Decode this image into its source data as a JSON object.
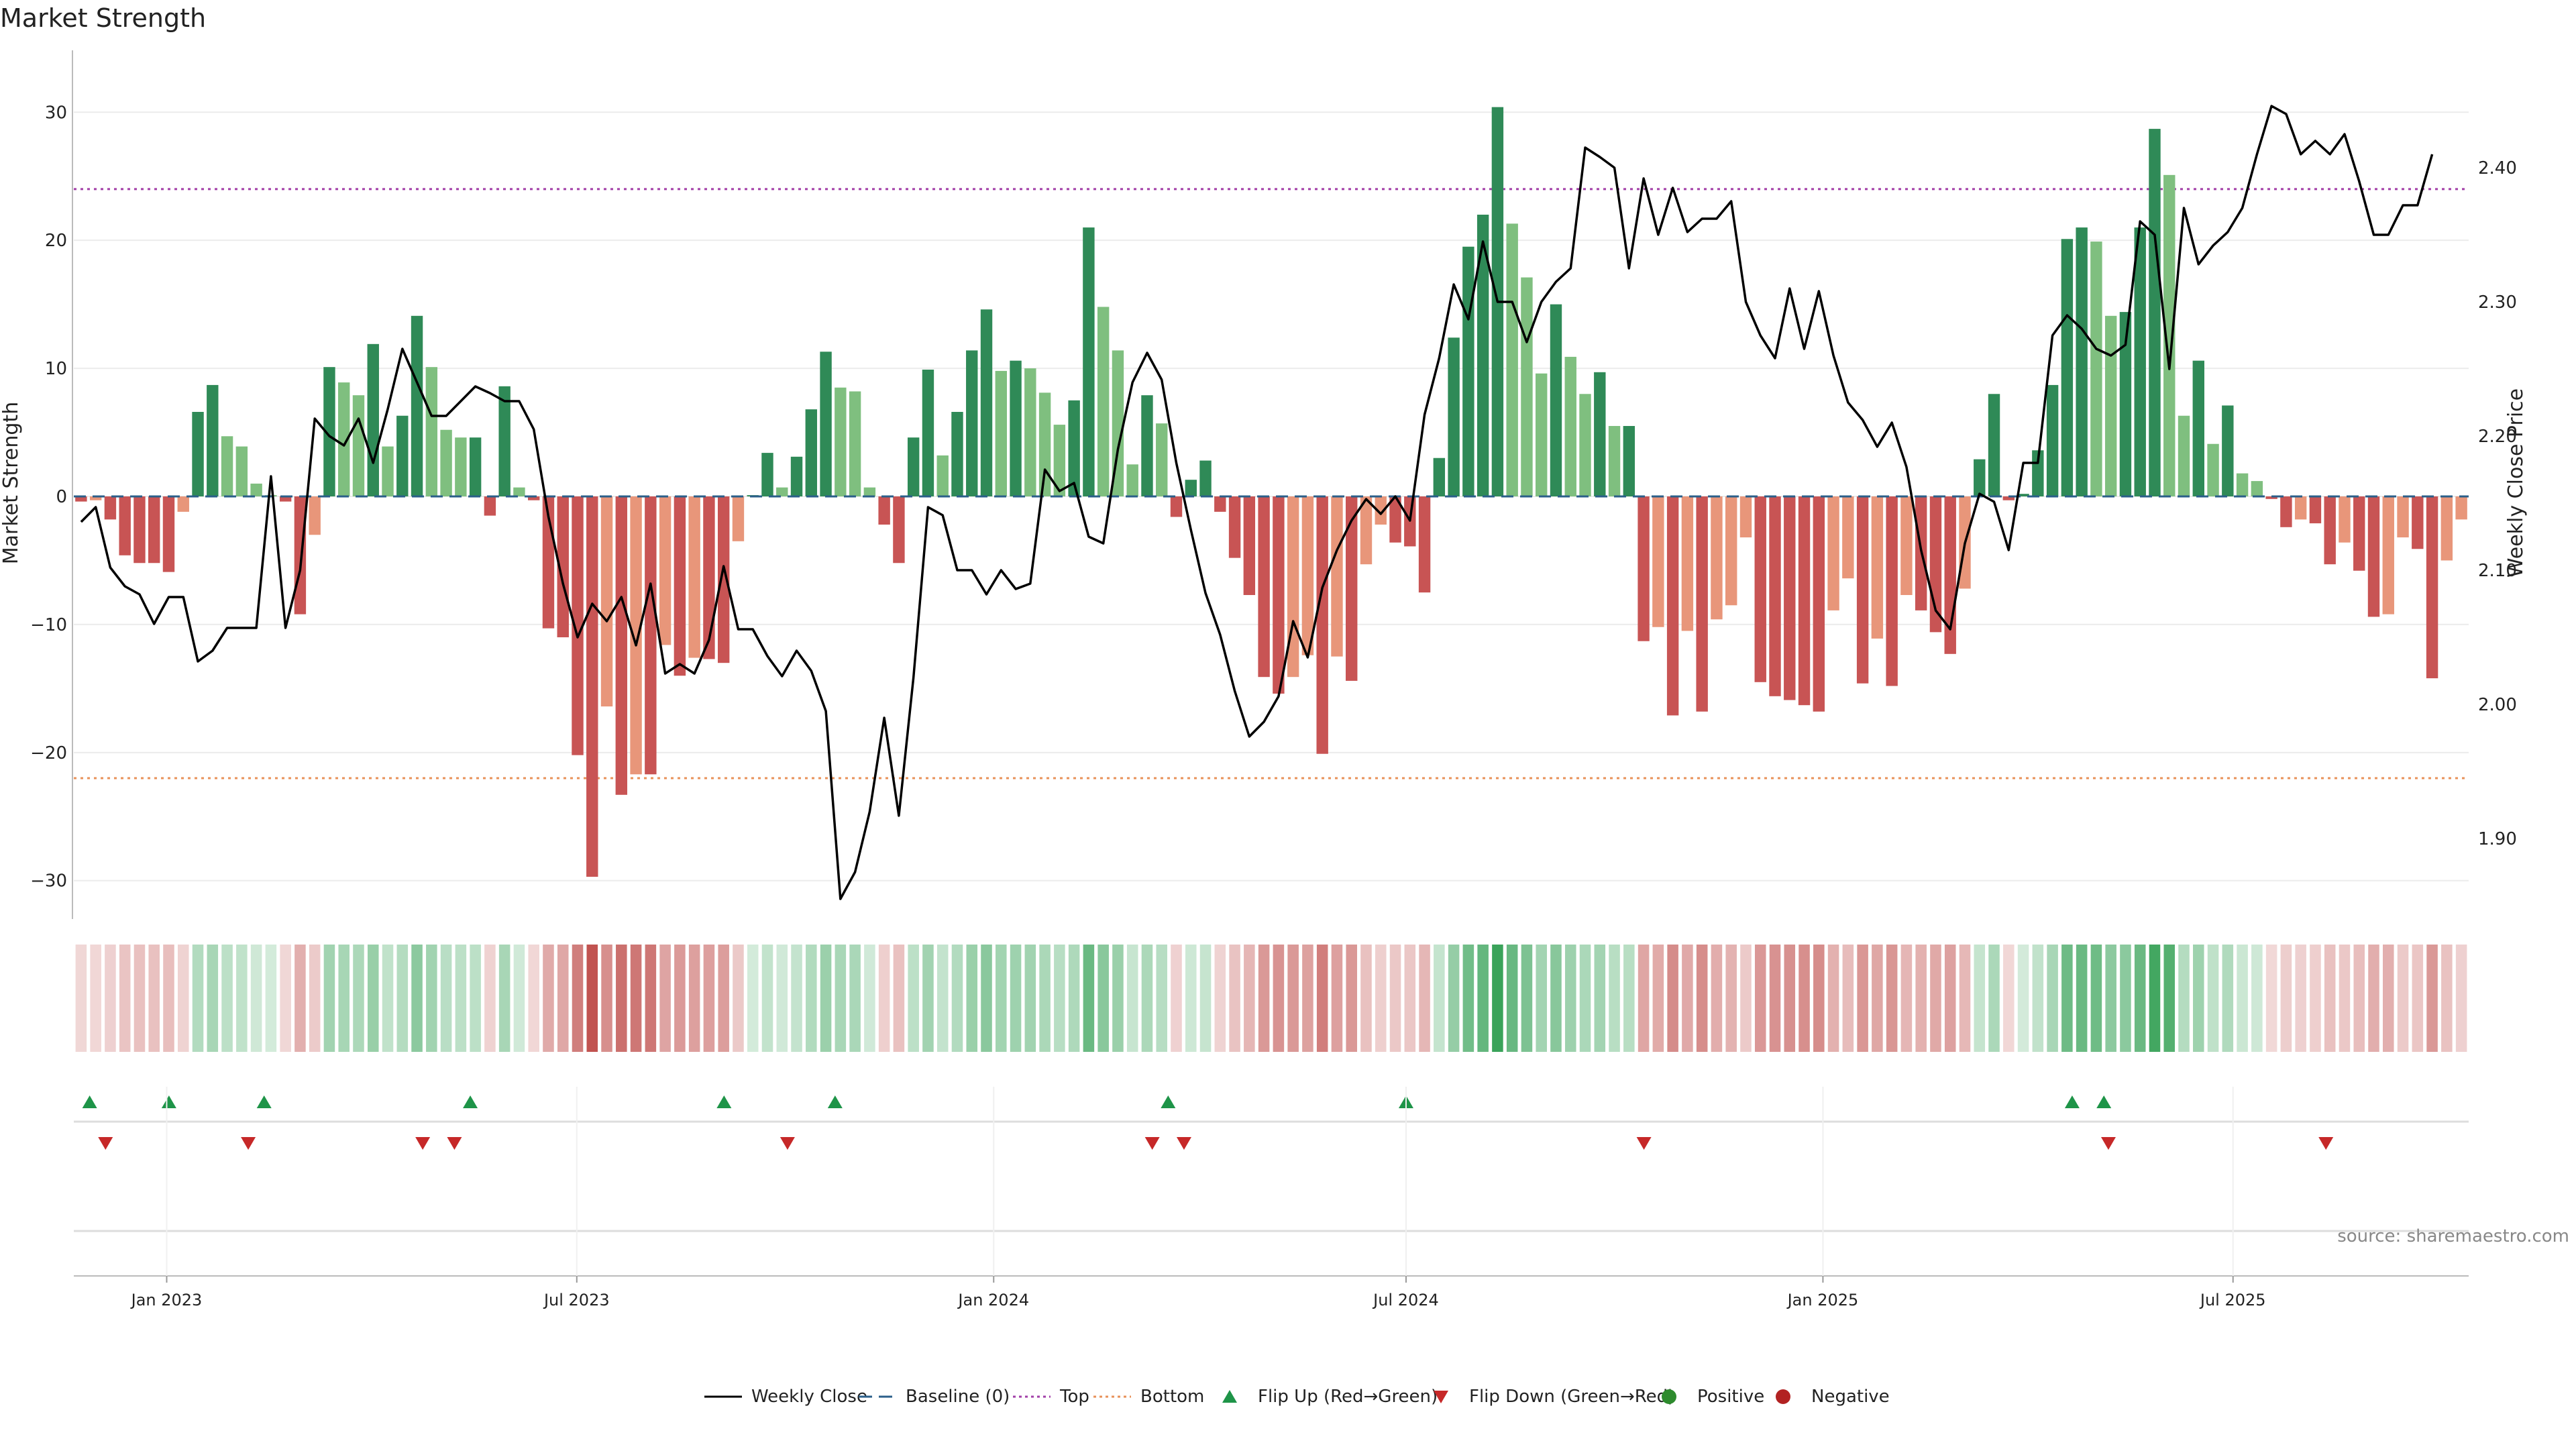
{
  "chart_data": {
    "type": "bar",
    "title": "Market Strength",
    "ylabel_left": "Market Strength",
    "ylabel_right": "Weekly Close Price",
    "source": "source: sharemaestro.com",
    "ylim_left": [
      -33,
      33
    ],
    "ylim_right": [
      1.84,
      2.47
    ],
    "yticks_left": [
      -30,
      -20,
      -10,
      0,
      10,
      20,
      30
    ],
    "ytick_labels_left": [
      "−30",
      "−20",
      "−10",
      "0",
      "10",
      "20",
      "30"
    ],
    "yticks_right": [
      1.9,
      2.0,
      2.1,
      2.2,
      2.3,
      2.4
    ],
    "ytick_labels_right": [
      "1.90",
      "2.00",
      "2.10",
      "2.20",
      "2.30",
      "2.40"
    ],
    "x_start": "2022-11-21",
    "x_end": "2025-10-13",
    "xticks": [
      {
        "date": "2023-01-01",
        "label": "Jan 2023"
      },
      {
        "date": "2023-07-01",
        "label": "Jul 2023"
      },
      {
        "date": "2024-01-01",
        "label": "Jan 2024"
      },
      {
        "date": "2024-07-01",
        "label": "Jul 2024"
      },
      {
        "date": "2025-01-01",
        "label": "Jan 2025"
      },
      {
        "date": "2025-07-01",
        "label": "Jul 2025"
      }
    ],
    "top_threshold": 24,
    "bottom_threshold": -22,
    "strength": [
      -0.4,
      -0.3,
      -1.8,
      -4.6,
      -5.2,
      -5.2,
      -5.9,
      -1.2,
      6.6,
      8.7,
      4.7,
      3.9,
      1.0,
      0.1,
      -0.4,
      -9.2,
      -3.0,
      10.1,
      8.9,
      7.9,
      11.9,
      3.9,
      6.3,
      14.1,
      10.1,
      5.2,
      4.6,
      4.6,
      -1.5,
      8.6,
      0.7,
      -0.3,
      -10.3,
      -11.0,
      -20.2,
      -29.7,
      -16.4,
      -23.3,
      -21.7,
      -21.7,
      -11.6,
      -14.0,
      -12.6,
      -12.7,
      -13.0,
      -3.5,
      0.1,
      3.4,
      0.7,
      3.1,
      6.8,
      11.3,
      8.5,
      8.2,
      0.7,
      -2.2,
      -5.2,
      4.6,
      9.9,
      3.2,
      6.6,
      11.4,
      14.6,
      9.8,
      10.6,
      10.0,
      8.1,
      5.6,
      7.5,
      21.0,
      14.8,
      11.4,
      2.5,
      7.9,
      5.7,
      -1.6,
      1.3,
      2.8,
      -1.2,
      -4.8,
      -7.7,
      -14.1,
      -15.4,
      -14.1,
      -12.4,
      -20.1,
      -12.5,
      -14.4,
      -5.3,
      -2.2,
      -3.6,
      -3.9,
      -7.5,
      3.0,
      12.4,
      19.5,
      22.0,
      30.4,
      21.3,
      17.1,
      9.6,
      15.0,
      10.9,
      8.0,
      9.7,
      5.5,
      5.5,
      -11.3,
      -10.2,
      -17.1,
      -10.5,
      -16.8,
      -9.6,
      -8.5,
      -3.2,
      -14.5,
      -15.6,
      -15.9,
      -16.3,
      -16.8,
      -8.9,
      -6.4,
      -14.6,
      -11.1,
      -14.8,
      -7.7,
      -8.9,
      -10.6,
      -12.3,
      -7.2,
      2.9,
      8.0,
      -0.3,
      0.2,
      3.6,
      8.7,
      20.1,
      21.0,
      19.9,
      14.1,
      14.4,
      21.0,
      28.7,
      25.1,
      6.3,
      10.6,
      4.1,
      7.1,
      1.8,
      1.2,
      -0.2,
      -2.4,
      -1.8,
      -2.1,
      -5.3,
      -3.6,
      -5.8,
      -9.4,
      -9.2,
      -3.2,
      -4.1,
      -14.2,
      -5.0,
      -1.8
    ],
    "weekly_close": [
      2.136,
      2.147,
      2.102,
      2.088,
      2.082,
      2.06,
      2.08,
      2.08,
      2.032,
      2.04,
      2.057,
      2.057,
      2.057,
      2.17,
      2.057,
      2.1,
      2.213,
      2.2,
      2.193,
      2.213,
      2.18,
      2.22,
      2.265,
      2.24,
      2.215,
      2.215,
      2.226,
      2.237,
      2.232,
      2.226,
      2.226,
      2.205,
      2.14,
      2.09,
      2.05,
      2.075,
      2.062,
      2.08,
      2.044,
      2.09,
      2.023,
      2.03,
      2.023,
      2.048,
      2.103,
      2.056,
      2.056,
      2.036,
      2.021,
      2.04,
      2.025,
      1.995,
      1.855,
      1.875,
      1.92,
      1.99,
      1.917,
      2.02,
      2.147,
      2.141,
      2.1,
      2.1,
      2.082,
      2.1,
      2.086,
      2.09,
      2.175,
      2.159,
      2.165,
      2.125,
      2.12,
      2.19,
      2.24,
      2.262,
      2.242,
      2.18,
      2.13,
      2.083,
      2.052,
      2.01,
      1.976,
      1.987,
      2.006,
      2.062,
      2.035,
      2.087,
      2.115,
      2.137,
      2.153,
      2.142,
      2.155,
      2.137,
      2.216,
      2.258,
      2.313,
      2.287,
      2.345,
      2.3,
      2.3,
      2.27,
      2.3,
      2.315,
      2.325,
      2.415,
      2.408,
      2.4,
      2.325,
      2.392,
      2.35,
      2.385,
      2.352,
      2.362,
      2.362,
      2.375,
      2.3,
      2.275,
      2.258,
      2.31,
      2.265,
      2.308,
      2.26,
      2.225,
      2.212,
      2.192,
      2.21,
      2.177,
      2.115,
      2.07,
      2.056,
      2.12,
      2.157,
      2.151,
      2.115,
      2.18,
      2.18,
      2.275,
      2.29,
      2.28,
      2.265,
      2.26,
      2.268,
      2.36,
      2.35,
      2.25,
      2.37,
      2.328,
      2.342,
      2.352,
      2.37,
      2.41,
      2.446,
      2.44,
      2.41,
      2.42,
      2.41,
      2.425,
      2.39,
      2.35,
      2.35,
      2.372,
      2.372,
      2.41
    ],
    "flip_up_dates": [
      "2022-11-28",
      "2023-01-02",
      "2023-02-13",
      "2023-05-15",
      "2023-09-04",
      "2023-10-23",
      "2024-03-18",
      "2024-07-01",
      "2025-04-21",
      "2025-05-05"
    ],
    "flip_down_dates": [
      "2022-12-05",
      "2023-02-06",
      "2023-04-24",
      "2023-05-08",
      "2023-10-02",
      "2024-03-11",
      "2024-03-25",
      "2024-10-14",
      "2025-05-07",
      "2025-08-11"
    ],
    "legend": [
      {
        "label": "Weekly Close",
        "kind": "line",
        "color": "#000000"
      },
      {
        "label": "Baseline (0)",
        "kind": "dashed",
        "color": "#2b5f8a"
      },
      {
        "label": "Top",
        "kind": "dotted",
        "color": "#a23fa8"
      },
      {
        "label": "Bottom",
        "kind": "dotted",
        "color": "#e8925a"
      },
      {
        "label": "Flip Up (Red→Green)",
        "kind": "triangle-up",
        "color": "#1e9448"
      },
      {
        "label": "Flip Down (Green→Red)",
        "kind": "triangle-down",
        "color": "#c62828"
      },
      {
        "label": "Positive",
        "kind": "dot",
        "color": "#2e8b2e"
      },
      {
        "label": "Negative",
        "kind": "dot",
        "color": "#b22222"
      }
    ],
    "colors": {
      "pos_dark": "#2f8a57",
      "pos_light": "#7fbf7f",
      "neg_dark": "#c85454",
      "neg_light": "#e8967a",
      "heat_pos": "#3aa35a",
      "heat_neg": "#c0504d",
      "price_line": "#000000",
      "top_line": "#a23fa8",
      "bottom_line": "#e8925a",
      "baseline": "#2b5f8a",
      "grid": "#ececec",
      "axis": "#bbbbbb"
    }
  }
}
